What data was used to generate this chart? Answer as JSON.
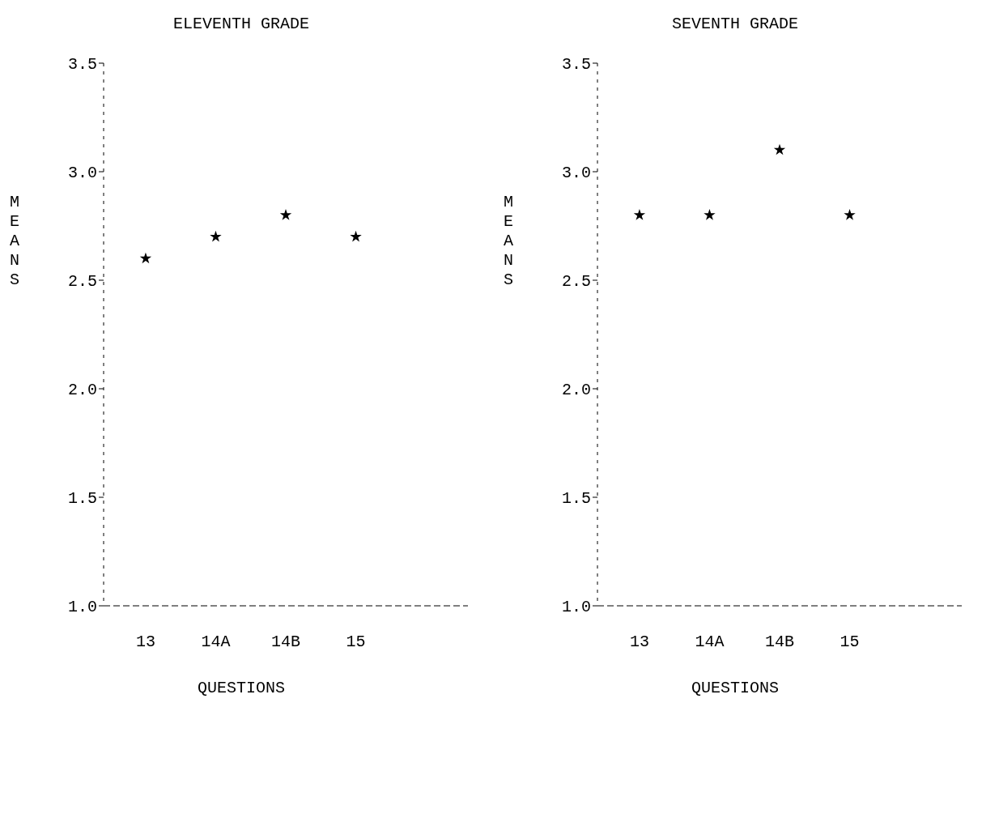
{
  "chart_data": [
    {
      "type": "scatter",
      "title": "ELEVENTH GRADE",
      "xlabel": "QUESTIONS",
      "ylabel": "MEANS",
      "categories": [
        "13",
        "14A",
        "14B",
        "15"
      ],
      "series": [
        {
          "color": "#000000",
          "values": [
            2.6,
            2.7,
            2.8,
            2.7
          ]
        }
      ],
      "ylim": [
        1.0,
        3.5
      ],
      "yticks": [
        {
          "value": 1,
          "label": "1.0"
        },
        1.5,
        {
          "value": 2,
          "label": "2.0"
        },
        2.5,
        {
          "value": 3,
          "label": "3.0"
        },
        3.5
      ],
      "marker": "star"
    },
    {
      "type": "scatter",
      "title": "SEVENTH GRADE",
      "xlabel": "QUESTIONS",
      "ylabel": "MEANS",
      "categories": [
        "13",
        "14A",
        "14B",
        "15"
      ],
      "series": [
        {
          "color": "#000000",
          "values": [
            2.8,
            2.8,
            3.1,
            2.8
          ]
        }
      ],
      "ylim": [
        1.0,
        3.5
      ],
      "yticks": [
        {
          "value": 1,
          "label": "1.0"
        },
        1.5,
        {
          "value": 2,
          "label": "2.0"
        },
        2.5,
        {
          "value": 3,
          "label": "3.0"
        },
        3.5
      ],
      "marker": "star"
    }
  ]
}
